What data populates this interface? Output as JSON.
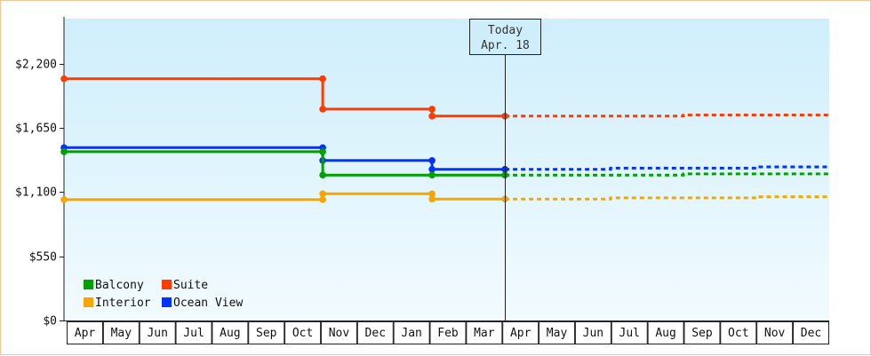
{
  "chart_data": {
    "type": "line",
    "title": "",
    "xlabel": "",
    "ylabel": "",
    "ylim": [
      0,
      2585
    ],
    "y_ticks": [
      {
        "value": 0,
        "label": "$0"
      },
      {
        "value": 550,
        "label": "$550"
      },
      {
        "value": 1100,
        "label": "$1,100"
      },
      {
        "value": 1650,
        "label": "$1,650"
      },
      {
        "value": 2200,
        "label": "$2,200"
      }
    ],
    "months": [
      "Apr",
      "May",
      "Jun",
      "Jul",
      "Aug",
      "Sep",
      "Oct",
      "Nov",
      "Dec",
      "Jan",
      "Feb",
      "Mar",
      "Apr",
      "May",
      "Jun",
      "Jul",
      "Aug",
      "Sep",
      "Oct",
      "Nov",
      "Dec"
    ],
    "x_range": [
      0,
      21
    ],
    "today": {
      "x": 12.1,
      "line1": "Today",
      "line2": "Apr. 18"
    },
    "grid": false,
    "legend_position": "bottom-left",
    "background_gradient": [
      "#cfeefb",
      "#f2fbff"
    ],
    "series": [
      {
        "name": "Suite",
        "color": "#ff3b00",
        "points": [
          [
            0,
            2070
          ],
          [
            7.1,
            2070
          ],
          [
            7.1,
            1810
          ],
          [
            10.1,
            1810
          ],
          [
            10.1,
            1750
          ],
          [
            12.1,
            1750
          ]
        ],
        "markers": [
          [
            0,
            2070
          ],
          [
            7.1,
            2070
          ],
          [
            7.1,
            1810
          ],
          [
            10.1,
            1810
          ],
          [
            10.1,
            1750
          ],
          [
            12.1,
            1750
          ]
        ],
        "projection": [
          [
            12.1,
            1750
          ],
          [
            17,
            1750
          ],
          [
            17,
            1760
          ],
          [
            21,
            1760
          ]
        ]
      },
      {
        "name": "Ocean View",
        "color": "#0033ff",
        "points": [
          [
            0,
            1480
          ],
          [
            7.1,
            1480
          ],
          [
            7.1,
            1370
          ],
          [
            10.1,
            1370
          ],
          [
            10.1,
            1295
          ],
          [
            12.1,
            1295
          ]
        ],
        "markers": [
          [
            0,
            1480
          ],
          [
            7.1,
            1480
          ],
          [
            7.1,
            1370
          ],
          [
            10.1,
            1370
          ],
          [
            10.1,
            1295
          ],
          [
            12.1,
            1295
          ]
        ],
        "projection": [
          [
            12.1,
            1295
          ],
          [
            15,
            1295
          ],
          [
            15,
            1305
          ],
          [
            19,
            1305
          ],
          [
            19,
            1315
          ],
          [
            21,
            1315
          ]
        ]
      },
      {
        "name": "Balcony",
        "color": "#00a000",
        "points": [
          [
            0,
            1445
          ],
          [
            7.1,
            1445
          ],
          [
            7.1,
            1245
          ],
          [
            12.1,
            1245
          ]
        ],
        "markers": [
          [
            0,
            1445
          ],
          [
            7.1,
            1445
          ],
          [
            7.1,
            1245
          ],
          [
            10.1,
            1245
          ],
          [
            12.1,
            1245
          ]
        ],
        "projection": [
          [
            12.1,
            1245
          ],
          [
            17,
            1245
          ],
          [
            17,
            1255
          ],
          [
            21,
            1255
          ]
        ]
      },
      {
        "name": "Interior",
        "color": "#f5a600",
        "points": [
          [
            0,
            1035
          ],
          [
            7.1,
            1035
          ],
          [
            7.1,
            1085
          ],
          [
            10.1,
            1085
          ],
          [
            10.1,
            1040
          ],
          [
            12.1,
            1040
          ]
        ],
        "markers": [
          [
            0,
            1035
          ],
          [
            7.1,
            1035
          ],
          [
            7.1,
            1085
          ],
          [
            10.1,
            1085
          ],
          [
            10.1,
            1040
          ],
          [
            12.1,
            1040
          ]
        ],
        "projection": [
          [
            12.1,
            1040
          ],
          [
            15,
            1040
          ],
          [
            15,
            1050
          ],
          [
            19,
            1050
          ],
          [
            19,
            1060
          ],
          [
            21,
            1060
          ]
        ]
      }
    ],
    "legend": [
      {
        "name": "Balcony",
        "color": "#00a000"
      },
      {
        "name": "Suite",
        "color": "#ff3b00"
      },
      {
        "name": "Interior",
        "color": "#f5a600"
      },
      {
        "name": "Ocean View",
        "color": "#0033ff"
      }
    ]
  }
}
